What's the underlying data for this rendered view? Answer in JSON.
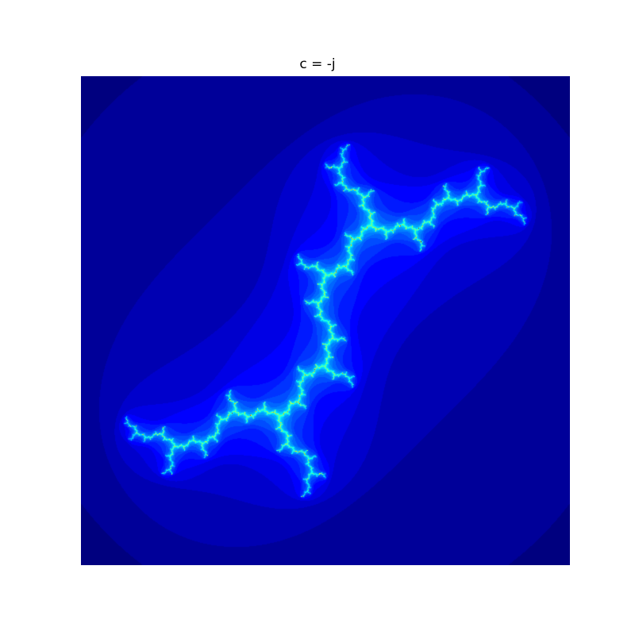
{
  "figure": {
    "title": "c = -j"
  },
  "fractal": {
    "type": "julia-set",
    "c_real": 0,
    "c_imag": -1,
    "x_range": [
      -1.6,
      1.6
    ],
    "y_range": [
      -1.6,
      1.6
    ],
    "max_iterations": 40,
    "escape_radius": 2,
    "colormap": "jet",
    "colormap_stops": [
      "#00007f",
      "#0000ff",
      "#007fff",
      "#00ffff",
      "#7fff7f",
      "#ffff00",
      "#ff7f00",
      "#ff0000",
      "#7f0000"
    ]
  }
}
